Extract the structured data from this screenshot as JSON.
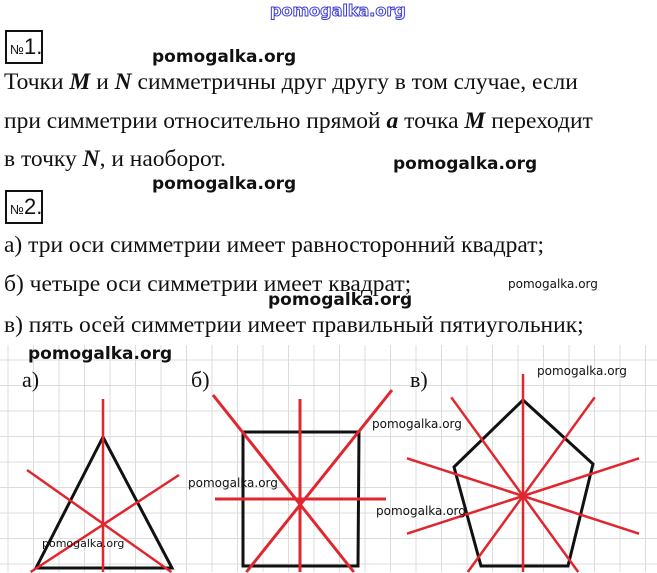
{
  "watermark": "pomogalka.org",
  "task1": {
    "number": "1.",
    "lines": [
      [
        "Точки ",
        "M",
        " и ",
        "N",
        " симметричны друг другу в том случае, если"
      ],
      [
        "при симметрии относительно прямой ",
        "a",
        " точка ",
        "M",
        " переходит"
      ],
      [
        "в точку ",
        "N",
        ", и наоборот."
      ]
    ]
  },
  "task2": {
    "number": "2.",
    "answers": [
      "а) три оси симметрии имеет равносторонний квадрат;",
      "б) четыре оси симметрии имеет квадрат;",
      "в) пять осей симметрии имеет правильный пятиугольник;"
    ],
    "figure_labels": [
      "а)",
      "б)",
      "в)"
    ]
  },
  "num_sign": "№",
  "colors": {
    "axis": "#e0262e",
    "shape": "#111111",
    "grid": "#dcdcdc",
    "watermark_top": "#3b3bd6"
  }
}
